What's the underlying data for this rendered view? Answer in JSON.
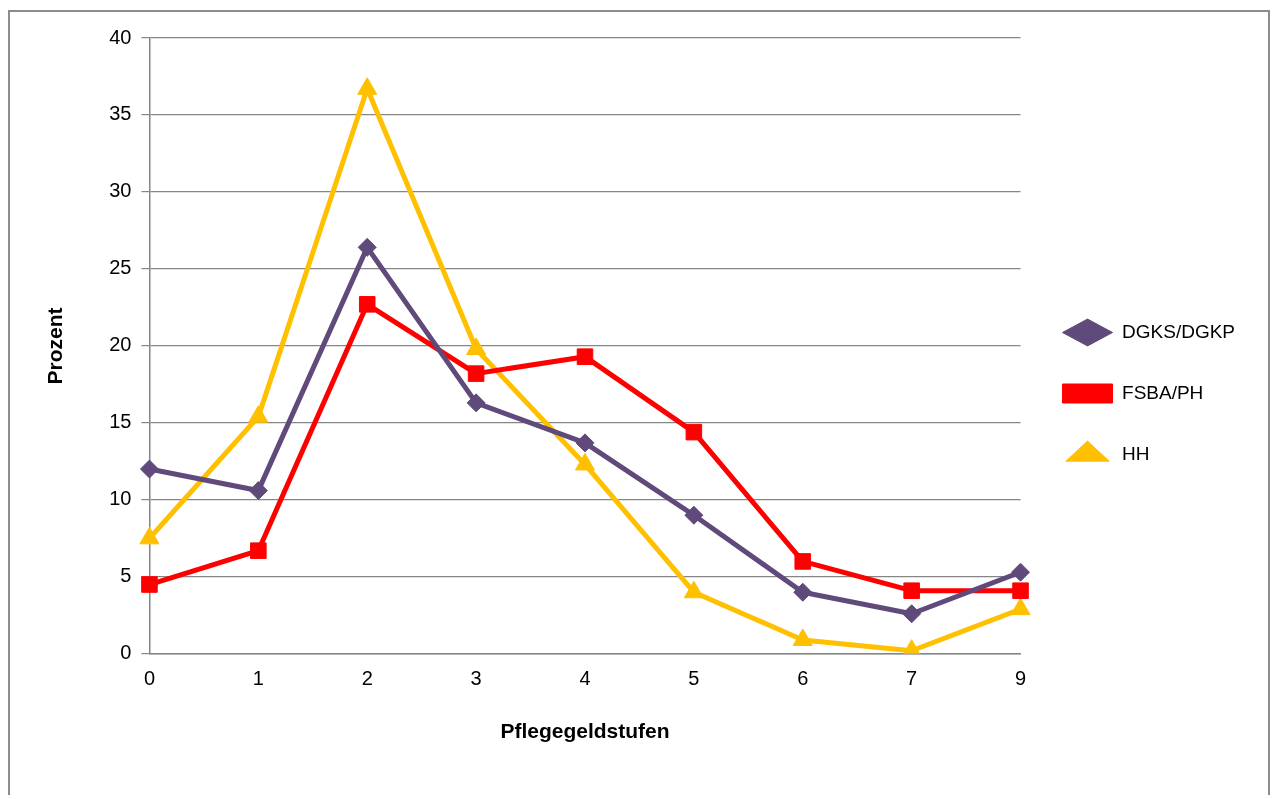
{
  "chart_data": {
    "type": "line",
    "xlabel": "Pflegegeldstufen",
    "ylabel": "Prozent",
    "categories": [
      "0",
      "1",
      "2",
      "3",
      "4",
      "5",
      "6",
      "7",
      "9"
    ],
    "series": [
      {
        "name": "DGKS/DGKP",
        "color": "#604a7b",
        "marker": "diamond",
        "values": [
          12.0,
          10.6,
          26.4,
          16.3,
          13.7,
          9.0,
          4.0,
          2.6,
          5.3
        ]
      },
      {
        "name": "FSBA/PH",
        "color": "#ff0000",
        "marker": "square",
        "values": [
          4.5,
          6.7,
          22.7,
          18.2,
          19.3,
          14.4,
          6.0,
          4.1,
          4.1
        ]
      },
      {
        "name": "HH",
        "color": "#ffc000",
        "marker": "triangle",
        "values": [
          7.5,
          15.4,
          36.7,
          19.8,
          12.3,
          4.0,
          0.9,
          0.2,
          2.9
        ]
      }
    ],
    "ylim": [
      0,
      40
    ],
    "yticks": [
      0,
      5,
      10,
      15,
      20,
      25,
      30,
      35,
      40
    ],
    "grid": "y",
    "legend": "right",
    "line_style": "solid"
  }
}
